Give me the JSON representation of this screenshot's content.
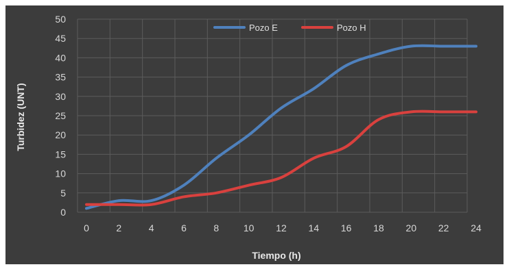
{
  "chart_data": {
    "type": "line",
    "xlabel": "Tiempo (h)",
    "ylabel": "Turbidez (UNT)",
    "xlim": [
      0,
      24
    ],
    "ylim": [
      0,
      50
    ],
    "x_ticks": [
      0,
      2,
      4,
      6,
      8,
      10,
      12,
      14,
      16,
      18,
      20,
      22,
      24
    ],
    "y_ticks": [
      0,
      5,
      10,
      15,
      20,
      25,
      30,
      35,
      40,
      45,
      50
    ],
    "grid": true,
    "legend_position": "top-center",
    "x": [
      0,
      2,
      4,
      6,
      8,
      10,
      12,
      14,
      16,
      18,
      20,
      22,
      24
    ],
    "series": [
      {
        "name": "Pozo E",
        "color": "#4f81bd",
        "values": [
          1,
          3,
          3,
          7,
          14,
          20,
          27,
          32,
          38,
          41,
          43,
          43,
          43
        ]
      },
      {
        "name": "Pozo H",
        "color": "#d9413e",
        "values": [
          2,
          2,
          2,
          4,
          5,
          7,
          9,
          14,
          17,
          24,
          26,
          26,
          26
        ]
      }
    ]
  }
}
